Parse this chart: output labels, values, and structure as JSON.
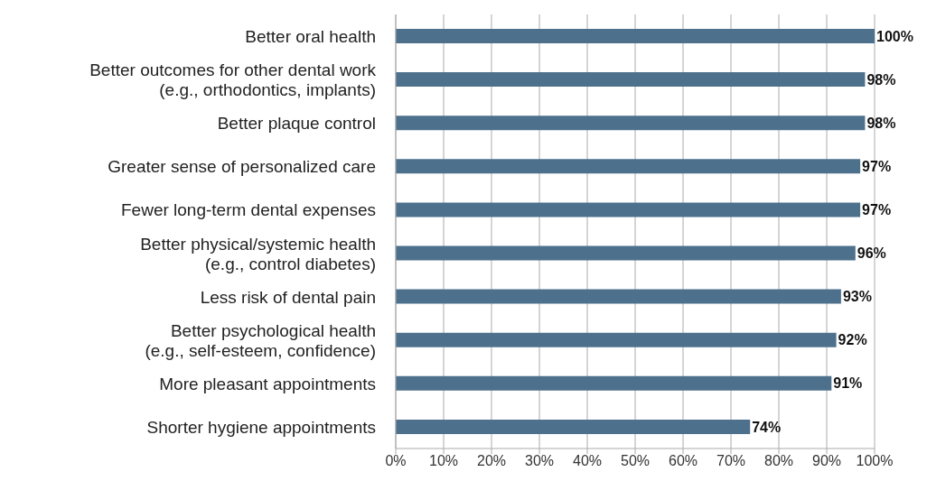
{
  "chart_data": {
    "type": "bar",
    "orientation": "horizontal",
    "categories": [
      "Better oral health",
      "Better outcomes for other dental work\n(e.g., orthodontics, implants)",
      "Better plaque control",
      "Greater sense of personalized care",
      "Fewer long-term dental expenses",
      "Better physical/systemic health\n(e.g., control diabetes)",
      "Less risk of dental pain",
      "Better psychological health\n(e.g., self-esteem, confidence)",
      "More pleasant appointments",
      "Shorter hygiene appointments"
    ],
    "values": [
      100,
      98,
      98,
      97,
      97,
      96,
      93,
      92,
      91,
      74
    ],
    "value_labels": [
      "100%",
      "98%",
      "98%",
      "97%",
      "97%",
      "96%",
      "93%",
      "92%",
      "91%",
      "74%"
    ],
    "color": "#4d718d",
    "xlim": [
      0,
      100
    ],
    "xticks": [
      {
        "value": 0,
        "label": "0%"
      },
      {
        "value": 10,
        "label": "10%"
      },
      {
        "value": 20,
        "label": "20%"
      },
      {
        "value": 30,
        "label": "30%"
      },
      {
        "value": 40,
        "label": "40%"
      },
      {
        "value": 50,
        "label": "50%"
      },
      {
        "value": 60,
        "label": "60%"
      },
      {
        "value": 70,
        "label": "70%"
      },
      {
        "value": 80,
        "label": "80%"
      },
      {
        "value": 90,
        "label": "90%"
      },
      {
        "value": 100,
        "label": "100%"
      }
    ],
    "grid": "x"
  }
}
